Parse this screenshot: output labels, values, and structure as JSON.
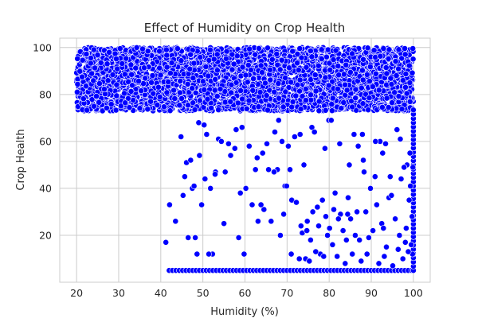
{
  "chart_data": {
    "type": "scatter",
    "title": "Effect of Humidity on Crop Health",
    "xlabel": "Humidity (%)",
    "ylabel": "Crop Health",
    "xlim": [
      16,
      104
    ],
    "ylim": [
      0,
      104
    ],
    "xticks": [
      20,
      30,
      40,
      50,
      60,
      70,
      80,
      90,
      100
    ],
    "yticks": [
      20,
      40,
      60,
      80,
      100
    ],
    "grid": true,
    "marker_color": "#0000ff",
    "marker_edge_color": "#ffffff",
    "series": [
      {
        "x": [
          41.2,
          42.1,
          43.5,
          45.7,
          46.5,
          47.5,
          48.6,
          49.7,
          49.2,
          51.8,
          52.3,
          53.7,
          55.3,
          57.6,
          57.9,
          59.8,
          62.5,
          63.1,
          64.2,
          65.6,
          67.7,
          68.4,
          69.5,
          71.1,
          70.7,
          46.1,
          48.2,
          50.3,
          51.4,
          53.0,
          56.6,
          58.5,
          60.2,
          61.7,
          64.5,
          66.2,
          68.0,
          69.9,
          71.0,
          72.2,
          73.3,
          74.8,
          75.6,
          76.1,
          77.9,
          78.4,
          79.2,
          80.8,
          81.4,
          82.7,
          83.3,
          84.5,
          85.1,
          86.6,
          87.2,
          88.3,
          89.0,
          90.4,
          91.3,
          92.5,
          93.6,
          94.2,
          95.7,
          96.4,
          97.1,
          98.3,
          99.0,
          99.8,
          72.9,
          74.4,
          76.8,
          78.7,
          80.1,
          81.9,
          83.8,
          85.5,
          87.6,
          89.4,
          91.8,
          93.1,
          95.1,
          97.5,
          98.8,
          99.5,
          73.6,
          75.3,
          77.2,
          79.6,
          82.2,
          84.1,
          86.2,
          88.7,
          90.9,
          92.9,
          94.8,
          96.7,
          98.1,
          99.7,
          71.8,
          75.9,
          79.9,
          84.8,
          88.1,
          92.1,
          96.1,
          99.2,
          47.1,
          52.9,
          59.3,
          65.2,
          70.3,
          76.5,
          82.5,
          87.9,
          93.4,
          98.5,
          49.0,
          54.4,
          61.0,
          67.1,
          73.1,
          79.0,
          85.9,
          91.0,
          96.9,
          99.9,
          44.8,
          50.9,
          56.1,
          62.9,
          68.8,
          74.0,
          80.5,
          86.9,
          92.7,
          97.8,
          45.3,
          47.9,
          50.5,
          55.0,
          58.9,
          63.8,
          66.9,
          69.2,
          74.7,
          77.5,
          81.1,
          84.4,
          89.8,
          94.5,
          99.3
        ],
        "y": [
          17,
          33,
          26,
          45,
          19,
          40,
          12,
          33,
          54,
          40,
          12,
          61,
          47,
          57,
          65,
          12,
          48,
          26,
          55,
          48,
          48,
          20,
          41,
          35,
          48,
          51,
          19,
          67,
          12,
          47,
          54,
          19,
          40,
          33,
          31,
          26,
          69,
          41,
          12,
          34,
          24,
          26,
          18,
          30,
          12,
          35,
          28,
          16,
          38,
          29,
          22,
          36,
          27,
          30,
          18,
          47,
          12,
          22,
          33,
          25,
          15,
          36,
          27,
          14,
          44,
          23,
          35,
          12,
          10,
          10,
          13,
          11,
          23,
          11,
          8,
          12,
          9,
          19,
          8,
          11,
          7,
          10,
          13,
          16,
          21,
          9,
          32,
          20,
          27,
          18,
          20,
          30,
          45,
          23,
          37,
          20,
          17,
          28,
          62,
          66,
          69,
          50,
          52,
          60,
          65,
          55,
          52,
          46,
          66,
          59,
          58,
          64,
          59,
          63,
          59,
          50,
          68,
          60,
          58,
          64,
          63,
          57,
          63,
          60,
          61,
          49,
          62,
          63,
          59,
          53,
          60,
          50,
          69,
          58,
          55,
          49,
          37,
          41,
          44,
          25,
          38,
          33,
          47,
          29,
          22,
          24,
          31,
          29,
          40,
          45,
          41
        ]
      }
    ],
    "dense_band": {
      "x_range": [
        20,
        100
      ],
      "y_range": [
        73,
        100
      ],
      "count": 4000
    },
    "floor_row": {
      "y": 5,
      "x_start": 42,
      "x_end": 100,
      "x_step": 0.8
    },
    "right_edge_column": {
      "x": 100,
      "y_start": 5,
      "y_end": 75,
      "y_step": 1.8
    }
  }
}
